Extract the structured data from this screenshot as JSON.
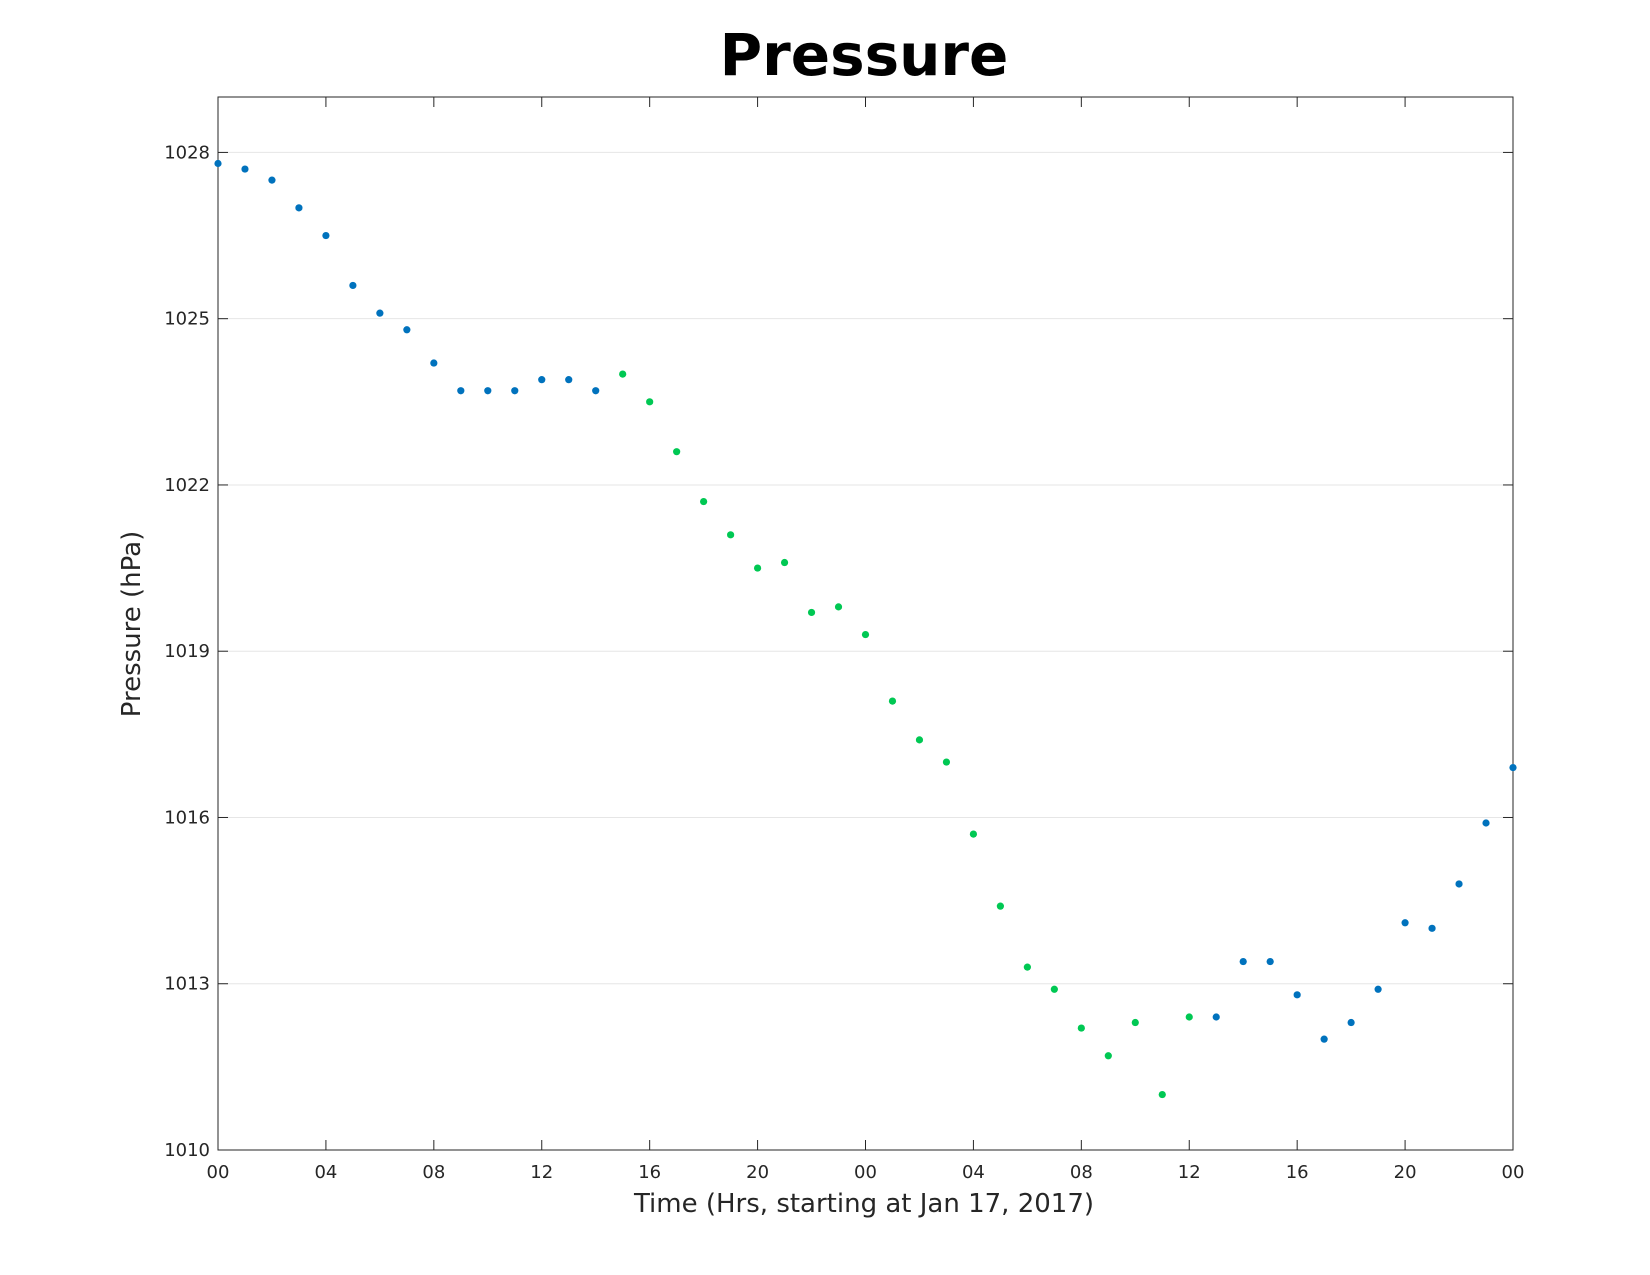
{
  "chart_data": {
    "type": "scatter",
    "title": "Pressure",
    "xlabel": "Time (Hrs, starting at Jan 17, 2017)",
    "ylabel": "Pressure (hPa)",
    "xlim": [
      0,
      48
    ],
    "ylim": [
      1010,
      1029
    ],
    "x_tick_values": [
      0,
      4,
      8,
      12,
      16,
      20,
      24,
      28,
      32,
      36,
      40,
      44,
      48
    ],
    "x_tick_labels": [
      "00",
      "04",
      "08",
      "12",
      "16",
      "20",
      "00",
      "04",
      "08",
      "12",
      "16",
      "20",
      "00"
    ],
    "y_tick_values": [
      1010,
      1013,
      1016,
      1019,
      1022,
      1025,
      1028
    ],
    "y_tick_labels": [
      "1010",
      "1013",
      "1016",
      "1019",
      "1022",
      "1025",
      "1028"
    ],
    "grid": "horizontal",
    "colors": {
      "blue": "#0072BD",
      "green": "#00C853"
    },
    "points": [
      {
        "x": 0,
        "y": 1027.8,
        "color": "blue"
      },
      {
        "x": 1,
        "y": 1027.7,
        "color": "blue"
      },
      {
        "x": 2,
        "y": 1027.5,
        "color": "blue"
      },
      {
        "x": 3,
        "y": 1027.0,
        "color": "blue"
      },
      {
        "x": 4,
        "y": 1026.5,
        "color": "blue"
      },
      {
        "x": 5,
        "y": 1025.6,
        "color": "blue"
      },
      {
        "x": 6,
        "y": 1025.1,
        "color": "blue"
      },
      {
        "x": 7,
        "y": 1024.8,
        "color": "blue"
      },
      {
        "x": 8,
        "y": 1024.2,
        "color": "blue"
      },
      {
        "x": 9,
        "y": 1023.7,
        "color": "blue"
      },
      {
        "x": 10,
        "y": 1023.7,
        "color": "blue"
      },
      {
        "x": 11,
        "y": 1023.7,
        "color": "blue"
      },
      {
        "x": 12,
        "y": 1023.9,
        "color": "blue"
      },
      {
        "x": 13,
        "y": 1023.9,
        "color": "blue"
      },
      {
        "x": 14,
        "y": 1023.7,
        "color": "blue"
      },
      {
        "x": 15,
        "y": 1024.0,
        "color": "green"
      },
      {
        "x": 16,
        "y": 1023.5,
        "color": "green"
      },
      {
        "x": 17,
        "y": 1022.6,
        "color": "green"
      },
      {
        "x": 18,
        "y": 1021.7,
        "color": "green"
      },
      {
        "x": 19,
        "y": 1021.1,
        "color": "green"
      },
      {
        "x": 20,
        "y": 1020.5,
        "color": "green"
      },
      {
        "x": 21,
        "y": 1020.6,
        "color": "green"
      },
      {
        "x": 22,
        "y": 1019.7,
        "color": "green"
      },
      {
        "x": 23,
        "y": 1019.8,
        "color": "green"
      },
      {
        "x": 24,
        "y": 1019.3,
        "color": "green"
      },
      {
        "x": 25,
        "y": 1018.1,
        "color": "green"
      },
      {
        "x": 26,
        "y": 1017.4,
        "color": "green"
      },
      {
        "x": 27,
        "y": 1017.0,
        "color": "green"
      },
      {
        "x": 28,
        "y": 1015.7,
        "color": "green"
      },
      {
        "x": 29,
        "y": 1014.4,
        "color": "green"
      },
      {
        "x": 30,
        "y": 1013.3,
        "color": "green"
      },
      {
        "x": 31,
        "y": 1012.9,
        "color": "green"
      },
      {
        "x": 32,
        "y": 1012.2,
        "color": "green"
      },
      {
        "x": 33,
        "y": 1011.7,
        "color": "green"
      },
      {
        "x": 34,
        "y": 1012.3,
        "color": "green"
      },
      {
        "x": 35,
        "y": 1011.0,
        "color": "green"
      },
      {
        "x": 36,
        "y": 1012.4,
        "color": "green"
      },
      {
        "x": 37,
        "y": 1012.4,
        "color": "blue"
      },
      {
        "x": 38,
        "y": 1013.4,
        "color": "blue"
      },
      {
        "x": 39,
        "y": 1013.4,
        "color": "blue"
      },
      {
        "x": 40,
        "y": 1012.8,
        "color": "blue"
      },
      {
        "x": 41,
        "y": 1012.0,
        "color": "blue"
      },
      {
        "x": 42,
        "y": 1012.3,
        "color": "blue"
      },
      {
        "x": 43,
        "y": 1012.9,
        "color": "blue"
      },
      {
        "x": 44,
        "y": 1014.1,
        "color": "blue"
      },
      {
        "x": 45,
        "y": 1014.0,
        "color": "blue"
      },
      {
        "x": 46,
        "y": 1014.8,
        "color": "blue"
      },
      {
        "x": 47,
        "y": 1015.9,
        "color": "blue"
      },
      {
        "x": 48,
        "y": 1016.9,
        "color": "blue"
      }
    ]
  }
}
